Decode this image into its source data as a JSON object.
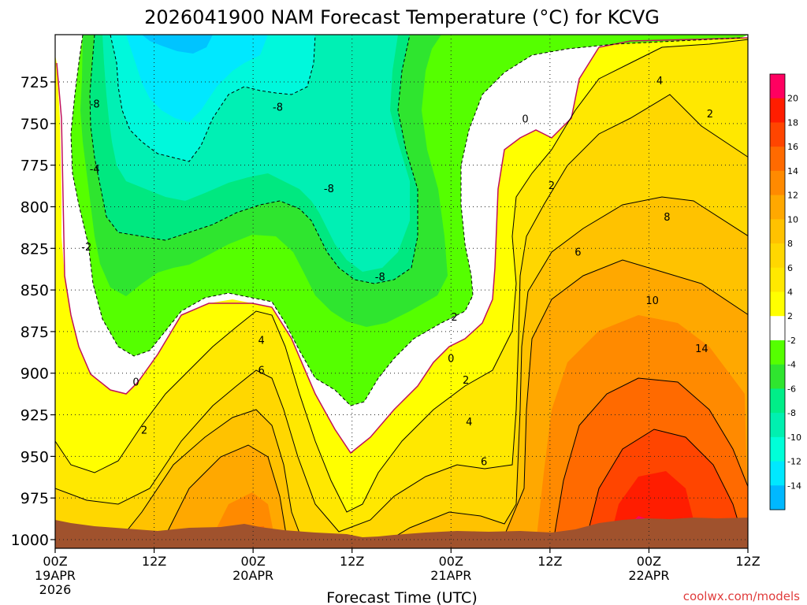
{
  "chart_data": {
    "type": "heatmap",
    "title": "2026041900 NAM Forecast Temperature (°C) for KCVG",
    "xlabel": "Forecast Time (UTC)",
    "ylabel": "",
    "credit": "coolwx.com/models",
    "x_range_hours": [
      0,
      84
    ],
    "y_range_hpa": [
      1000,
      700
    ],
    "x_ticks": [
      {
        "hour": 0,
        "label": "00Z",
        "date": "19APR",
        "year": "2026"
      },
      {
        "hour": 12,
        "label": "12Z",
        "date": "",
        "year": ""
      },
      {
        "hour": 24,
        "label": "00Z",
        "date": "20APR",
        "year": ""
      },
      {
        "hour": 36,
        "label": "12Z",
        "date": "",
        "year": ""
      },
      {
        "hour": 48,
        "label": "00Z",
        "date": "21APR",
        "year": ""
      },
      {
        "hour": 60,
        "label": "12Z",
        "date": "",
        "year": ""
      },
      {
        "hour": 72,
        "label": "00Z",
        "date": "22APR",
        "year": ""
      },
      {
        "hour": 84,
        "label": "12Z",
        "date": "",
        "year": ""
      }
    ],
    "y_ticks": [
      725,
      750,
      775,
      800,
      825,
      850,
      875,
      900,
      925,
      950,
      975,
      1000
    ],
    "colorbar": {
      "labels": [
        "20",
        "18",
        "16",
        "14",
        "12",
        "10",
        "8",
        "6",
        "4",
        "2",
        "-2",
        "-4",
        "-6",
        "-8",
        "-10",
        "-12",
        "-14"
      ],
      "colors": [
        "#ff0060",
        "#ff1d00",
        "#ff4500",
        "#ff6a00",
        "#ff8a00",
        "#ffa800",
        "#ffc200",
        "#ffd700",
        "#ffe800",
        "#ffff00",
        "#ffffff",
        "#55ff00",
        "#2fe52f",
        "#00ee88",
        "#00f0b0",
        "#00ffd8",
        "#00e8ff",
        "#00b8ff"
      ]
    },
    "contour_labels": [
      {
        "text": "-8",
        "hour": 4.8,
        "hpa": 738
      },
      {
        "text": "-4",
        "hour": 4.8,
        "hpa": 777
      },
      {
        "text": "-2",
        "hour": 3.8,
        "hpa": 824
      },
      {
        "text": "-8",
        "hour": 27,
        "hpa": 740
      },
      {
        "text": "-8",
        "hour": 33.2,
        "hpa": 789
      },
      {
        "text": "-8",
        "hour": 39.4,
        "hpa": 842
      },
      {
        "text": "0",
        "hour": 57,
        "hpa": 747
      },
      {
        "text": "2",
        "hour": 60.2,
        "hpa": 787
      },
      {
        "text": "6",
        "hour": 63.4,
        "hpa": 827
      },
      {
        "text": "4",
        "hour": 73.3,
        "hpa": 724
      },
      {
        "text": "2",
        "hour": 79.4,
        "hpa": 744
      },
      {
        "text": "8",
        "hour": 74.2,
        "hpa": 806
      },
      {
        "text": "10",
        "hour": 72.4,
        "hpa": 856
      },
      {
        "text": "14",
        "hour": 78.4,
        "hpa": 885
      },
      {
        "text": "4",
        "hour": 25,
        "hpa": 880
      },
      {
        "text": "6",
        "hour": 25,
        "hpa": 898
      },
      {
        "text": "0",
        "hour": 9.8,
        "hpa": 905
      },
      {
        "text": "2",
        "hour": 10.8,
        "hpa": 934
      },
      {
        "text": "2",
        "hour": 48.4,
        "hpa": 866
      },
      {
        "text": "0",
        "hour": 48,
        "hpa": 891
      },
      {
        "text": "2",
        "hour": 49.8,
        "hpa": 904
      },
      {
        "text": "4",
        "hour": 50.2,
        "hpa": 929
      },
      {
        "text": "6",
        "hour": 52,
        "hpa": 953
      }
    ]
  }
}
